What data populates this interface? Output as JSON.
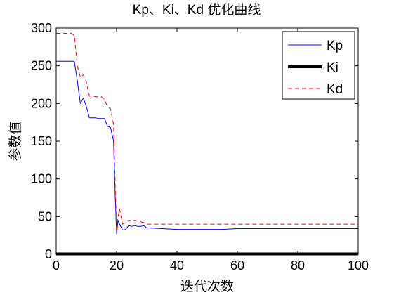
{
  "chart_data": {
    "type": "line",
    "title": "Kp、Ki、Kd 优化曲线",
    "xlabel": "迭代次数",
    "ylabel": "参数值",
    "xlim": [
      0,
      100
    ],
    "ylim": [
      0,
      300
    ],
    "xticks": [
      "0",
      "20",
      "40",
      "60",
      "80",
      "100"
    ],
    "yticks": [
      "0",
      "50",
      "100",
      "150",
      "200",
      "250",
      "300"
    ],
    "grid": false,
    "legend_position": "top-right",
    "series": [
      {
        "name": "Kp",
        "color": "#0000ff",
        "style": "solid",
        "x": [
          0,
          1,
          2,
          3,
          4,
          5,
          6,
          7,
          8,
          9,
          10,
          11,
          12,
          13,
          14,
          15,
          16,
          17,
          18,
          19,
          19.5,
          20,
          20.5,
          21,
          22,
          23,
          24,
          25,
          26,
          27,
          28,
          29,
          30,
          35,
          40,
          45,
          50,
          55,
          60,
          65,
          70,
          75,
          80,
          85,
          90,
          95,
          100
        ],
        "values": [
          256,
          256,
          256,
          256,
          256,
          256,
          256,
          230,
          200,
          207,
          196,
          181,
          181,
          181,
          180,
          180,
          180,
          170,
          168,
          150,
          80,
          27,
          45,
          40,
          32,
          33,
          38,
          37,
          38,
          37,
          37,
          38,
          35,
          34,
          33,
          33,
          33,
          33,
          34,
          34,
          34,
          34,
          34,
          34,
          34,
          34,
          34
        ]
      },
      {
        "name": "Ki",
        "color": "#000000",
        "style": "solid-thick",
        "x": [
          0,
          100
        ],
        "values": [
          0.5,
          0.5
        ]
      },
      {
        "name": "Kd",
        "color": "#ff0000",
        "style": "dashed",
        "x": [
          0,
          1,
          2,
          3,
          4,
          5,
          6,
          7,
          8,
          9,
          10,
          11,
          12,
          13,
          14,
          15,
          16,
          17,
          18,
          19,
          19.5,
          20,
          20.5,
          21,
          22,
          23,
          24,
          25,
          26,
          27,
          28,
          29,
          30,
          35,
          40,
          45,
          50,
          55,
          60,
          65,
          70,
          75,
          80,
          85,
          90,
          95,
          100
        ],
        "values": [
          293,
          293,
          293,
          293,
          293,
          293,
          290,
          250,
          235,
          238,
          228,
          210,
          210,
          209,
          209,
          209,
          205,
          196,
          193,
          172,
          95,
          30,
          50,
          60,
          40,
          43,
          45,
          45,
          45,
          44,
          43,
          42,
          40,
          40,
          40,
          40,
          40,
          40,
          40,
          40,
          40,
          40,
          40,
          40,
          40,
          40,
          40
        ]
      }
    ]
  }
}
